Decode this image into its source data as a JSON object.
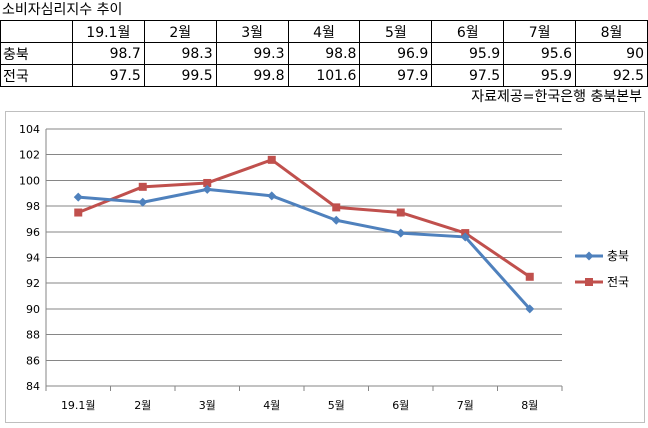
{
  "title": "소비자심리지수 추이",
  "table": {
    "header": [
      "",
      "19.1월",
      "2월",
      "3월",
      "4월",
      "5월",
      "6월",
      "7월",
      "8월"
    ],
    "rows": [
      {
        "label": "충북",
        "values": [
          "98.7",
          "98.3",
          "99.3",
          "98.8",
          "96.9",
          "95.9",
          "95.6",
          "90"
        ]
      },
      {
        "label": "전국",
        "values": [
          "97.5",
          "99.5",
          "99.8",
          "101.6",
          "97.9",
          "97.5",
          "95.9",
          "92.5"
        ]
      }
    ]
  },
  "source": "자료제공=한국은행 충북본부",
  "chart_data": {
    "type": "line",
    "categories": [
      "19.1월",
      "2월",
      "3월",
      "4월",
      "5월",
      "6월",
      "7월",
      "8월"
    ],
    "series": [
      {
        "name": "충북",
        "values": [
          98.7,
          98.3,
          99.3,
          98.8,
          96.9,
          95.9,
          95.6,
          90
        ],
        "color": "#4f81bd",
        "marker": "diamond"
      },
      {
        "name": "전국",
        "values": [
          97.5,
          99.5,
          99.8,
          101.6,
          97.9,
          97.5,
          95.9,
          92.5
        ],
        "color": "#c0504d",
        "marker": "square"
      }
    ],
    "ylim": [
      84,
      104
    ],
    "ytick_step": 2,
    "grid": true,
    "legend": "right"
  }
}
